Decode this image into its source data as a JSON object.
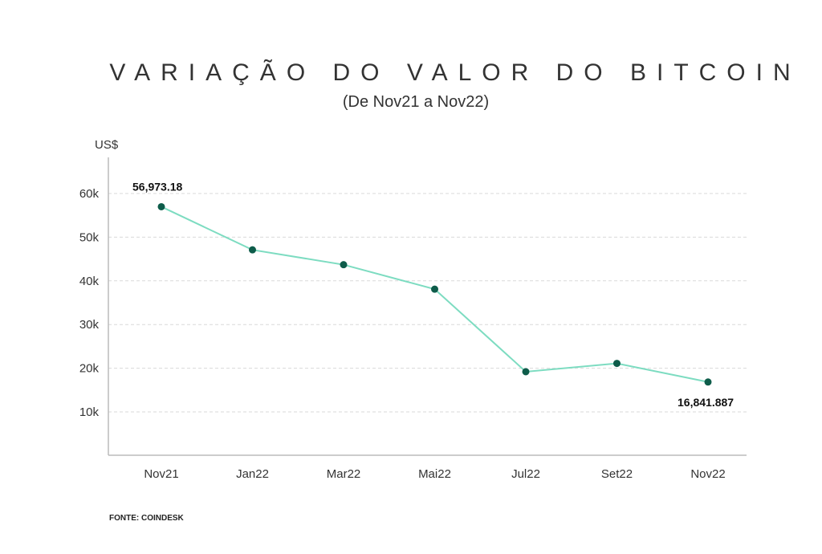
{
  "header": {
    "title": "VARIAÇÃO DO VALOR DO BITCOIN",
    "subtitle": "(De Nov21 a Nov22)"
  },
  "footer": {
    "source": "FONTE: COINDESK"
  },
  "colors": {
    "line": "#7ddcc1",
    "marker": "#0e5c4a",
    "grid": "#d9d9d9",
    "axis": "#bbbbbb"
  },
  "chart_data": {
    "type": "line",
    "title": "VARIAÇÃO DO VALOR DO BITCOIN",
    "subtitle": "(De Nov21 a Nov22)",
    "ylabel": "US$",
    "xlabel": "",
    "categories": [
      "Nov21",
      "Jan22",
      "Mar22",
      "Mai22",
      "Jul22",
      "Set22",
      "Nov22"
    ],
    "series": [
      {
        "values": [
          56973.18,
          47100,
          43700,
          38100,
          19200,
          21100,
          16841.887
        ]
      }
    ],
    "yticks": [
      10000,
      20000,
      30000,
      40000,
      50000,
      60000
    ],
    "ytick_labels": [
      "10k",
      "20k",
      "30k",
      "40k",
      "50k",
      "60k"
    ],
    "ylim": [
      0,
      68000
    ],
    "grid": true,
    "data_labels": [
      {
        "index": 0,
        "text": "56,973.18"
      },
      {
        "index": 6,
        "text": "16,841.887"
      }
    ]
  }
}
